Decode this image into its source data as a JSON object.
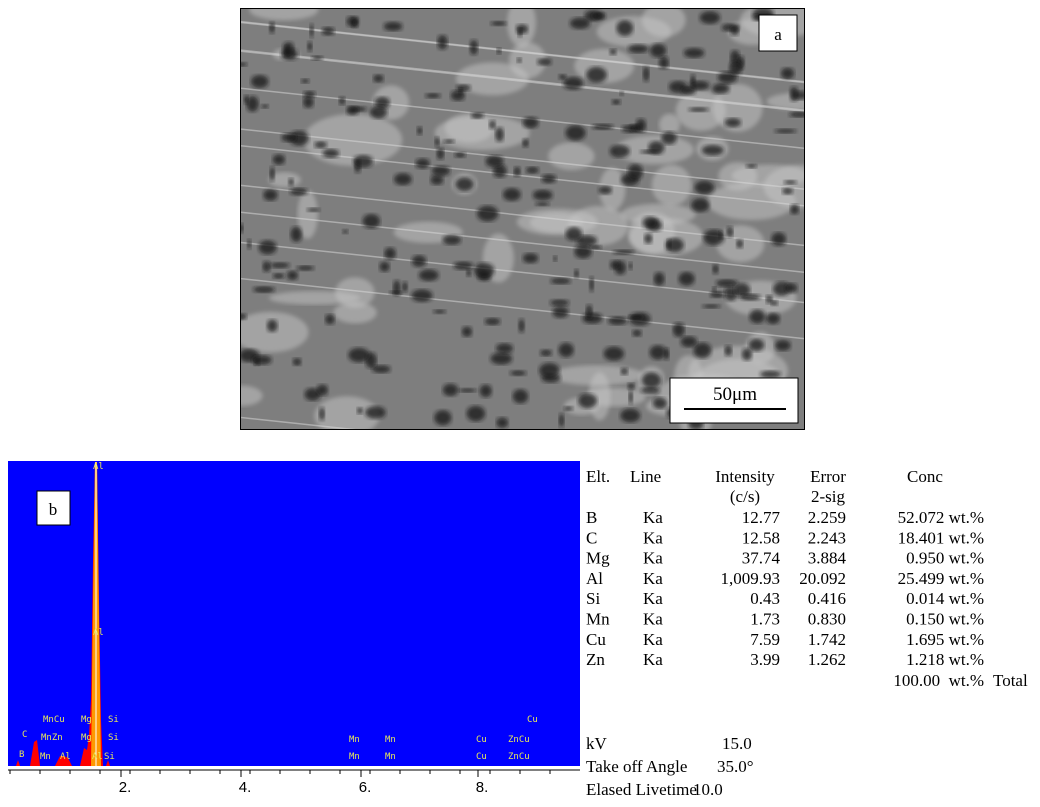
{
  "figure_a": {
    "label": "a",
    "scale_bar": "50μm"
  },
  "figure_b": {
    "label": "b",
    "x_tick_labels": [
      "2.",
      "4.",
      "6.",
      "8."
    ],
    "peak_labels": [
      "Al",
      "Al",
      "MnCu",
      "Mg",
      "Si",
      "C",
      "MnZn",
      "Mg",
      "Si",
      "B",
      "Mn",
      "Al",
      "Al",
      "Si",
      "Mn",
      "Mn",
      "Mn",
      "Mn",
      "Cu",
      "Cu",
      "ZnCu",
      "Cu",
      "ZnCu"
    ]
  },
  "table": {
    "headers": [
      [
        "Elt."
      ],
      [
        "Line"
      ],
      [
        "Intensity",
        "(c/s)"
      ],
      [
        "Error",
        "2-sig"
      ],
      [
        "Conc"
      ]
    ],
    "rows": [
      [
        "B",
        "Ka",
        "12.77",
        "2.259",
        "52.072 wt.%"
      ],
      [
        "C",
        "Ka",
        "12.58",
        "2.243",
        "18.401 wt.%"
      ],
      [
        "Mg",
        "Ka",
        "37.74",
        "3.884",
        "0.950 wt.%"
      ],
      [
        "Al",
        "Ka",
        "1,009.93",
        "20.092",
        "25.499 wt.%"
      ],
      [
        "Si",
        "Ka",
        "0.43",
        "0.416",
        "0.014 wt.%"
      ],
      [
        "Mn",
        "Ka",
        "1.73",
        "0.830",
        "0.150 wt.%"
      ],
      [
        "Cu",
        "Ka",
        "7.59",
        "1.742",
        "1.695 wt.%"
      ],
      [
        "Zn",
        "Ka",
        "3.99",
        "1.262",
        "1.218 wt.%"
      ]
    ],
    "total": [
      "100.00  wt.%",
      "Total"
    ],
    "footer": [
      [
        "kV",
        "15.0"
      ],
      [
        "Take off Angle",
        "35.0°"
      ],
      [
        "Elased Livetime",
        "10.0"
      ]
    ]
  }
}
